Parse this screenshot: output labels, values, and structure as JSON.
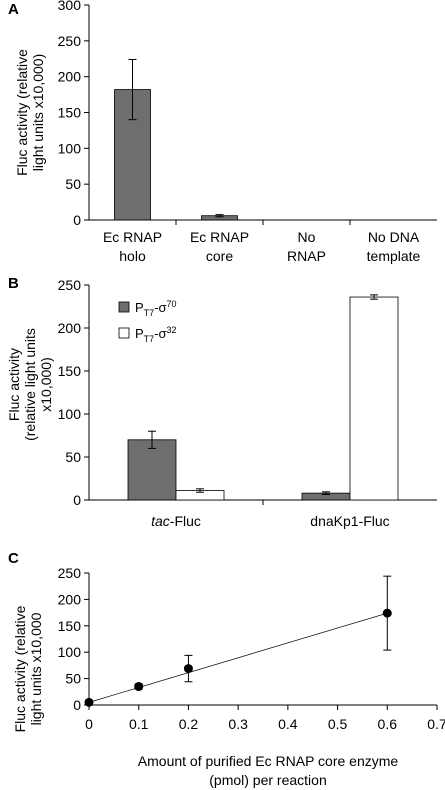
{
  "colors": {
    "dark_bar": "#6e6e6e",
    "light_bar": "#ffffff",
    "axis": "#000000",
    "point": "#000000"
  },
  "chart_data": [
    {
      "panel": "A",
      "type": "bar",
      "ylabel": "Fluc activity (relative light units x10,000)",
      "ylim": [
        0,
        300
      ],
      "yticks": [
        0,
        50,
        100,
        150,
        200,
        250,
        300
      ],
      "categories": [
        "Ec RNAP holo",
        "Ec RNAP core",
        "No RNAP",
        "No DNA template"
      ],
      "category_lines": [
        [
          "Ec RNAP",
          "holo"
        ],
        [
          "Ec RNAP",
          "core"
        ],
        [
          "No",
          "RNAP"
        ],
        [
          "No DNA",
          "template"
        ]
      ],
      "values": [
        182,
        6,
        0,
        0
      ],
      "errors": [
        42,
        1.5,
        0,
        0
      ]
    },
    {
      "panel": "B",
      "type": "bar",
      "ylabel": "Fluc activity (relative light units x10,000)",
      "ylim": [
        0,
        250
      ],
      "yticks": [
        0,
        50,
        100,
        150,
        200,
        250
      ],
      "categories": [
        "tac-Fluc",
        "dnaKp1-Fluc"
      ],
      "category_parts": [
        [
          "tac",
          "-Fluc"
        ],
        [
          "",
          "dnaKp1-Fluc"
        ]
      ],
      "legend": [
        {
          "main": "P",
          "sub": "T7",
          "mid": "-σ",
          "sup": "70"
        },
        {
          "main": "P",
          "sub": "T7",
          "mid": "-σ",
          "sup": "32"
        }
      ],
      "legend_position": "top-left",
      "series": [
        {
          "name": "PT7-σ70",
          "values": [
            70,
            8
          ],
          "errors": [
            10,
            1.5
          ]
        },
        {
          "name": "PT7-σ32",
          "values": [
            11,
            236
          ],
          "errors": [
            2,
            2.5
          ]
        }
      ]
    },
    {
      "panel": "C",
      "type": "scatter",
      "ylabel": "Fluc activity (relative light units x10,000",
      "xlabel": "Amount of purified Ec RNAP core enzyme (pmol) per reaction",
      "xlabel_lines": [
        "Amount of purified Ec RNAP core enzyme",
        "(pmol) per reaction"
      ],
      "xlim": [
        0,
        0.7
      ],
      "ylim": [
        0,
        250
      ],
      "xticks": [
        0,
        0.1,
        0.2,
        0.3,
        0.4,
        0.5,
        0.6,
        0.7
      ],
      "yticks": [
        0,
        50,
        100,
        150,
        200,
        250
      ],
      "x": [
        0,
        0.1,
        0.2,
        0.6
      ],
      "y": [
        5,
        35,
        69,
        174
      ],
      "errors": [
        2,
        5,
        25,
        70
      ],
      "trendline": {
        "x": [
          0,
          0.6
        ],
        "y": [
          5,
          174
        ]
      }
    }
  ]
}
